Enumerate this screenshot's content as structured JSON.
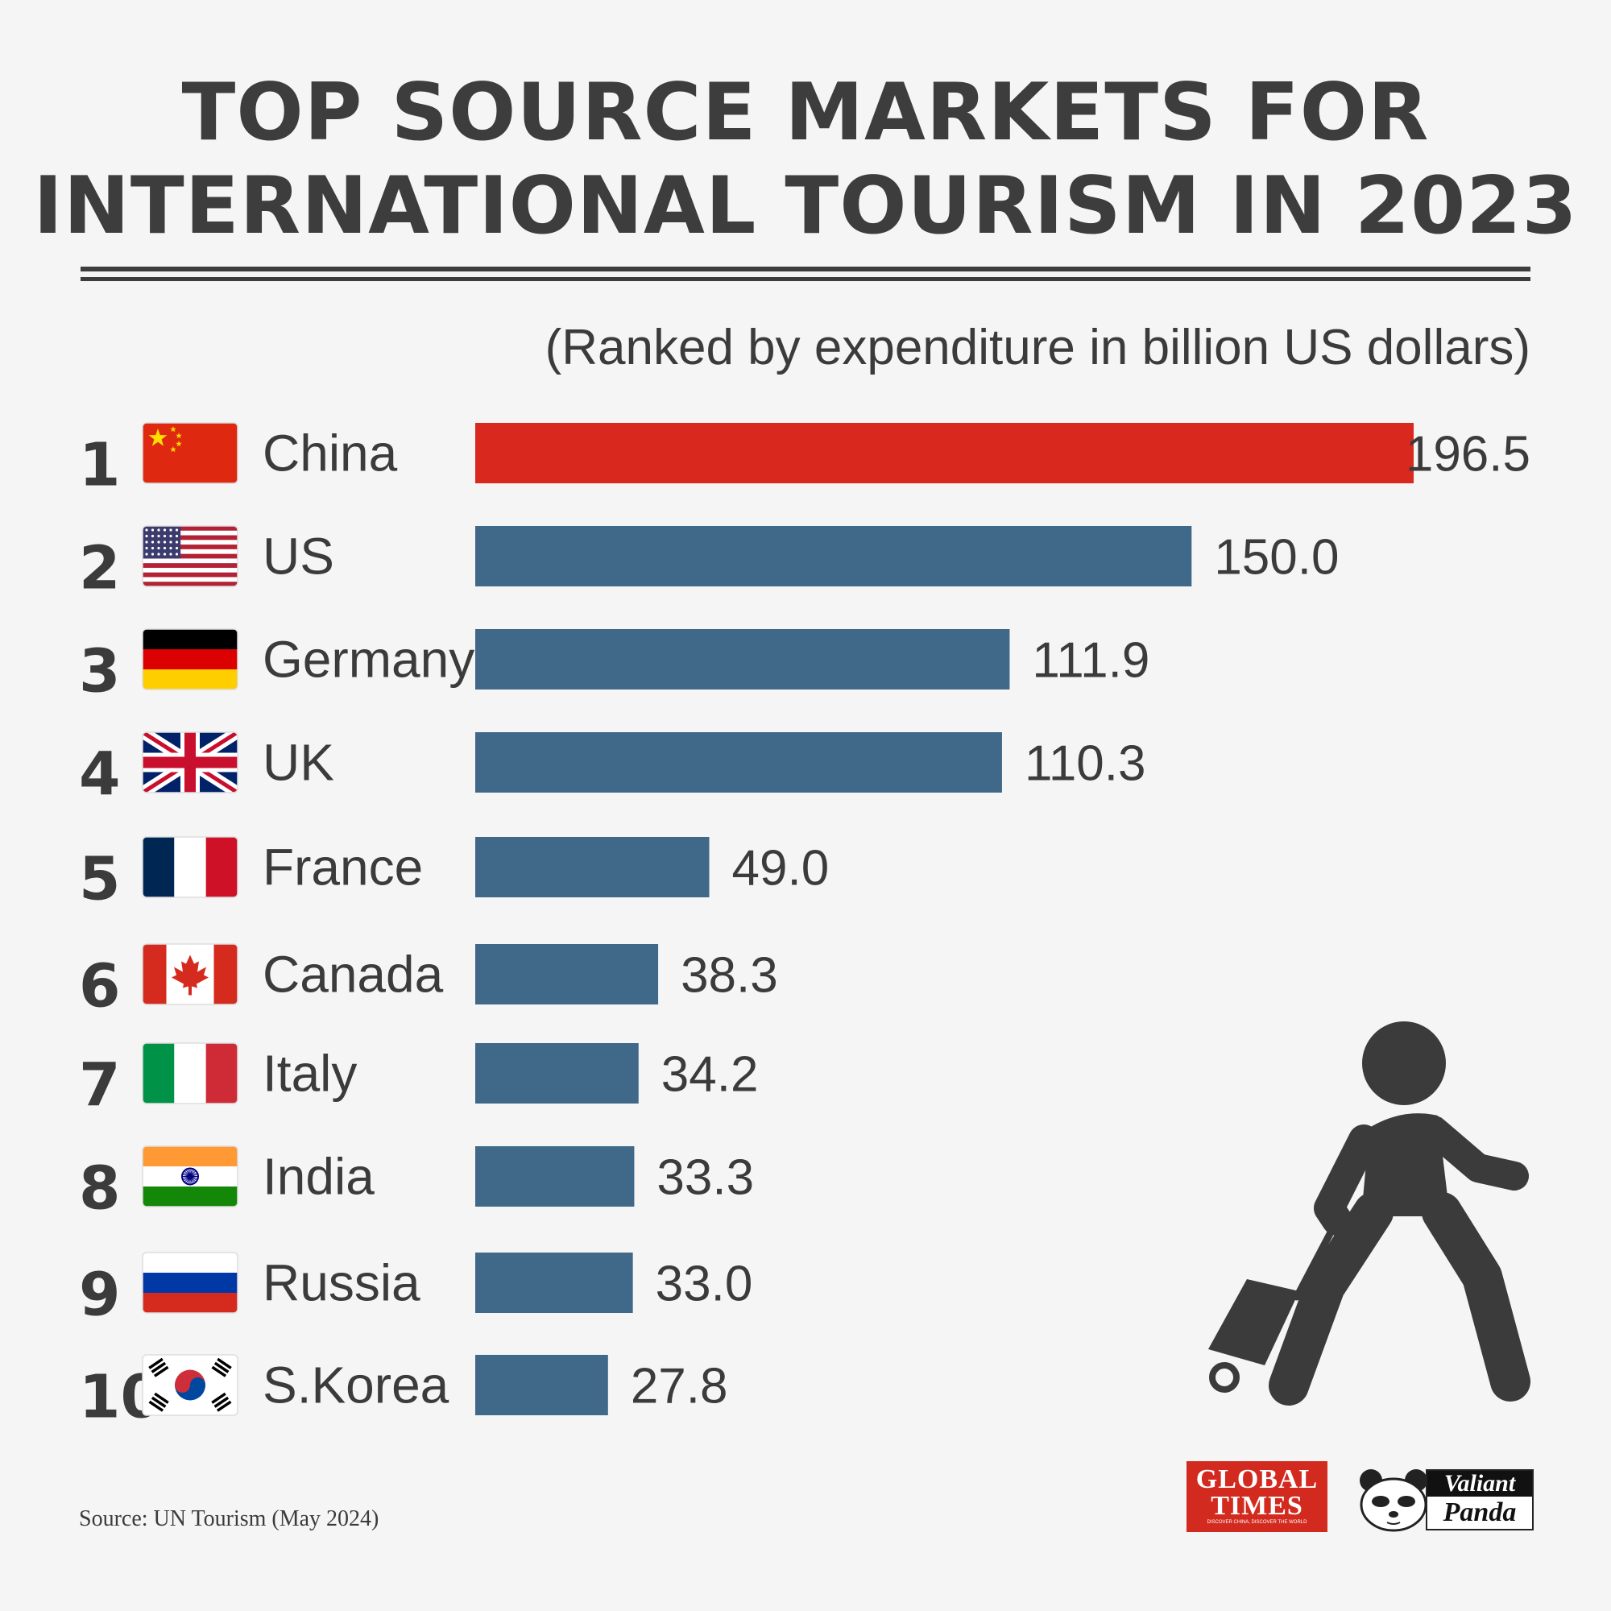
{
  "title_lines": [
    "TOP SOURCE MARKETS FOR",
    "INTERNATIONAL TOURISM IN 2023"
  ],
  "subtitle": "(Ranked by expenditure in billion US dollars)",
  "source": "Source: UN Tourism (May 2024)",
  "colors": {
    "highlight": "#d9281e",
    "bar": "#3f6889",
    "text": "#3b3b3b",
    "background": "#f5f5f5"
  },
  "chart_data": {
    "type": "bar",
    "orientation": "horizontal",
    "title": "TOP SOURCE MARKETS FOR INTERNATIONAL TOURISM IN 2023",
    "subtitle": "(Ranked by expenditure in billion US dollars)",
    "unit": "billion US dollars",
    "ranks": [
      "1",
      "2",
      "3",
      "4",
      "5",
      "6",
      "7",
      "8",
      "9",
      "10"
    ],
    "categories": [
      "China",
      "US",
      "Germany",
      "UK",
      "France",
      "Canada",
      "Italy",
      "India",
      "Russia",
      "S.Korea"
    ],
    "flags": [
      "china-flag-icon",
      "us-flag-icon",
      "germany-flag-icon",
      "uk-flag-icon",
      "france-flag-icon",
      "canada-flag-icon",
      "italy-flag-icon",
      "india-flag-icon",
      "russia-flag-icon",
      "south-korea-flag-icon"
    ],
    "values": [
      196.5,
      150.0,
      111.9,
      110.3,
      49.0,
      38.3,
      34.2,
      33.3,
      33.0,
      27.8
    ],
    "value_labels": [
      "196.5",
      "150.0",
      "111.9",
      "110.3",
      "49.0",
      "38.3",
      "34.2",
      "33.3",
      "33.0",
      "27.8"
    ],
    "highlight_index": 0,
    "xlim": [
      0,
      196.5
    ],
    "grid": false,
    "legend": "none"
  },
  "logos": {
    "global_times": {
      "line1": "GLOBAL",
      "line2": "TIMES",
      "tagline": "DISCOVER CHINA, DISCOVER THE WORLD"
    },
    "valiant_panda": {
      "line1": "Valiant",
      "line2": "Panda"
    }
  },
  "decoration": {
    "traveler": "traveler-with-suitcase-icon"
  }
}
